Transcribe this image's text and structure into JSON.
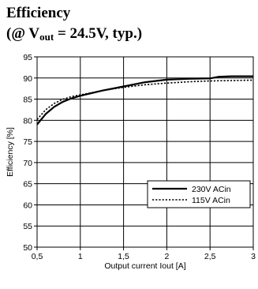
{
  "header": {
    "line1": "Efficiency",
    "line2_prefix": "(@ V",
    "line2_sub": "out",
    "line2_suffix": " = 24.5V, typ.)"
  },
  "chart_data": {
    "type": "line",
    "title": "",
    "xlabel": "Output current Iout [A]",
    "ylabel": "Efficiency [%]",
    "xlim": [
      0.5,
      3
    ],
    "ylim": [
      50,
      95
    ],
    "x_ticks": [
      0.5,
      1,
      1.5,
      2,
      2.5,
      3
    ],
    "x_tick_labels": [
      "0,5",
      "1",
      "1,5",
      "2",
      "2,5",
      "3"
    ],
    "y_ticks": [
      50,
      55,
      60,
      65,
      70,
      75,
      80,
      85,
      90,
      95
    ],
    "y_tick_labels": [
      "50",
      "55",
      "60",
      "65",
      "70",
      "75",
      "80",
      "85",
      "90",
      "95"
    ],
    "grid": true,
    "legend_position": "lower-right",
    "series": [
      {
        "name": "230V ACin",
        "style": "solid",
        "color": "#000000",
        "x": [
          0.5,
          0.6,
          0.7,
          0.8,
          0.9,
          1.0,
          1.25,
          1.5,
          1.75,
          2.0,
          2.25,
          2.5,
          2.6,
          2.75,
          3.0
        ],
        "y": [
          79,
          81.5,
          83.2,
          84.4,
          85.2,
          85.8,
          87.0,
          88.0,
          89.0,
          89.6,
          89.8,
          89.9,
          90.3,
          90.4,
          90.4
        ]
      },
      {
        "name": "115V ACin",
        "style": "dotted",
        "color": "#000000",
        "x": [
          0.5,
          0.6,
          0.7,
          0.8,
          0.9,
          1.0,
          1.25,
          1.5,
          1.75,
          2.0,
          2.25,
          2.5,
          2.75,
          3.0
        ],
        "y": [
          80.2,
          82.5,
          84.0,
          85.0,
          85.6,
          86.0,
          87.0,
          87.8,
          88.4,
          88.8,
          89.1,
          89.3,
          89.4,
          89.5
        ]
      }
    ]
  }
}
